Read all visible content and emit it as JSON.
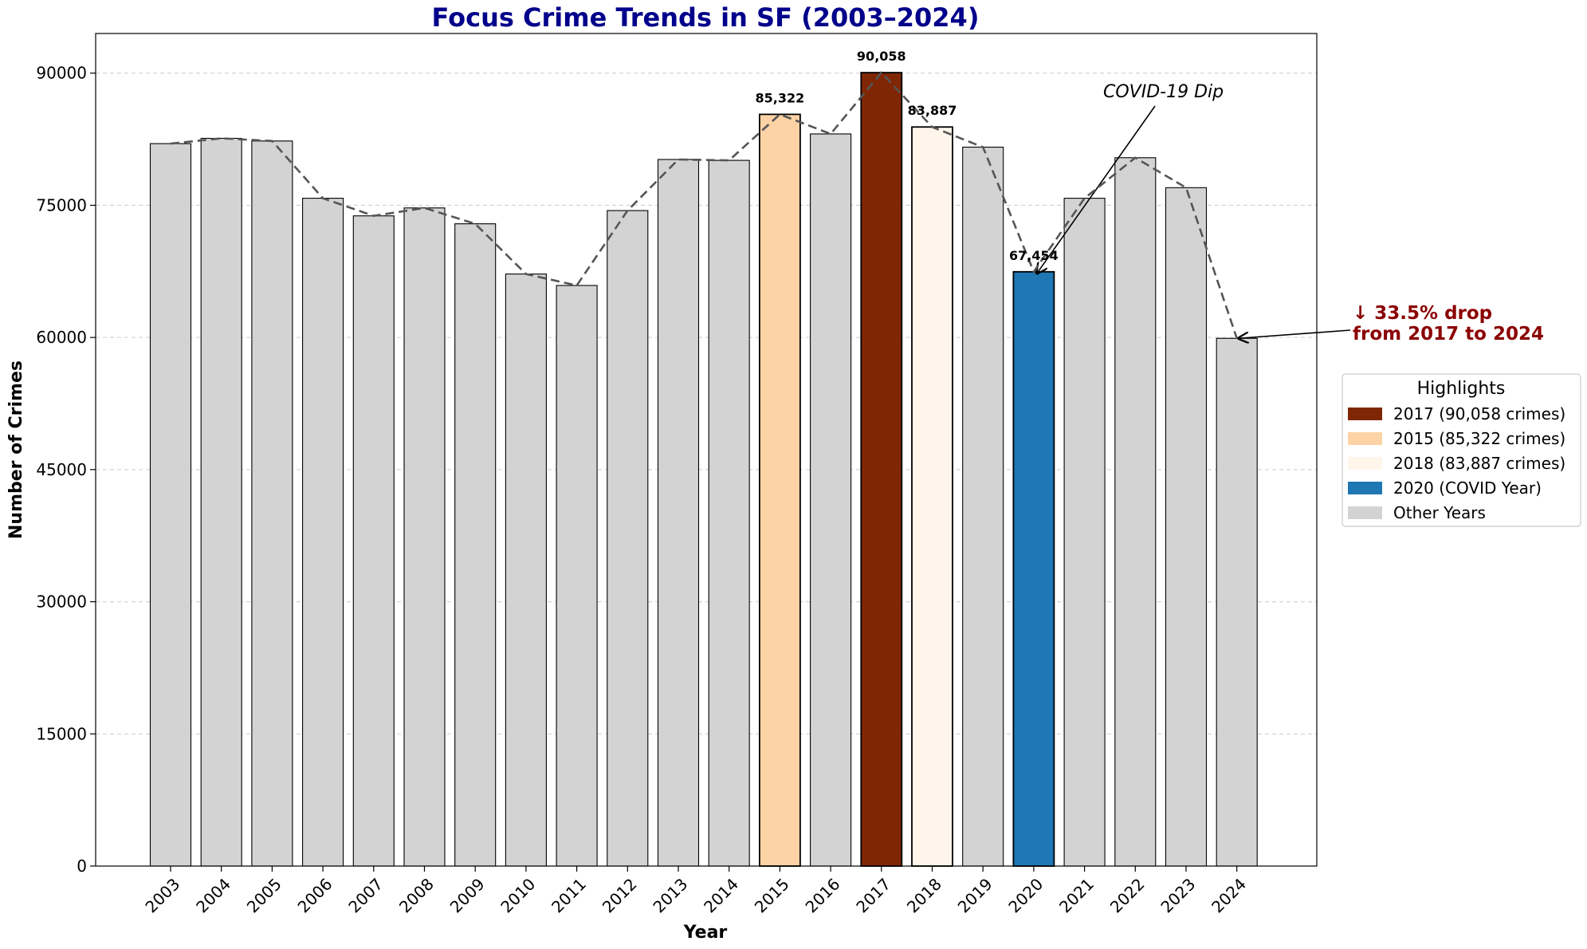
{
  "chart_data": {
    "type": "bar",
    "title": "Focus Crime Trends in SF (2003–2024)",
    "xlabel": "Year",
    "ylabel": "Number of Crimes",
    "ylim": [
      0,
      94500
    ],
    "yticks": [
      0,
      15000,
      30000,
      45000,
      60000,
      75000,
      90000
    ],
    "ytick_labels": [
      "0",
      "15000",
      "30000",
      "45000",
      "60000",
      "75000",
      "90000"
    ],
    "grid": "horizontal dashed",
    "categories": [
      "2003",
      "2004",
      "2005",
      "2006",
      "2007",
      "2008",
      "2009",
      "2010",
      "2011",
      "2012",
      "2013",
      "2014",
      "2015",
      "2016",
      "2017",
      "2018",
      "2019",
      "2020",
      "2021",
      "2022",
      "2023",
      "2024"
    ],
    "values": [
      82000,
      82600,
      82300,
      75800,
      73800,
      74700,
      72900,
      67200,
      65900,
      74400,
      80200,
      80100,
      85322,
      83100,
      90058,
      83887,
      81600,
      67454,
      75800,
      80400,
      77000,
      59900
    ],
    "trend_line": "dashed",
    "bar_colors": {
      "2015": "#fdd3a6",
      "2017": "#7f2704",
      "2018": "#fff5eb",
      "2020": "#1f77b4",
      "default": "#d3d3d3"
    },
    "data_labels": [
      {
        "category": "2015",
        "text": "85,322"
      },
      {
        "category": "2017",
        "text": "90,058"
      },
      {
        "category": "2018",
        "text": "83,887"
      },
      {
        "category": "2020",
        "text": "67,454"
      }
    ],
    "annotations": [
      {
        "text": "COVID-19 Dip",
        "target_category": "2020"
      },
      {
        "line1": "↓ 33.5% drop",
        "line2": "from 2017 to 2024",
        "target_category": "2024"
      }
    ],
    "legend": {
      "title": "Highlights",
      "placement": "center-right outside",
      "entries": [
        {
          "label": "2017 (90,058 crimes)",
          "color": "#7f2704"
        },
        {
          "label": "2015 (85,322 crimes)",
          "color": "#fdd3a6"
        },
        {
          "label": "2018 (83,887 crimes)",
          "color": "#fff5eb"
        },
        {
          "label": "2020 (COVID Year)",
          "color": "#1f77b4"
        },
        {
          "label": "Other Years",
          "color": "#d3d3d3"
        }
      ]
    }
  }
}
